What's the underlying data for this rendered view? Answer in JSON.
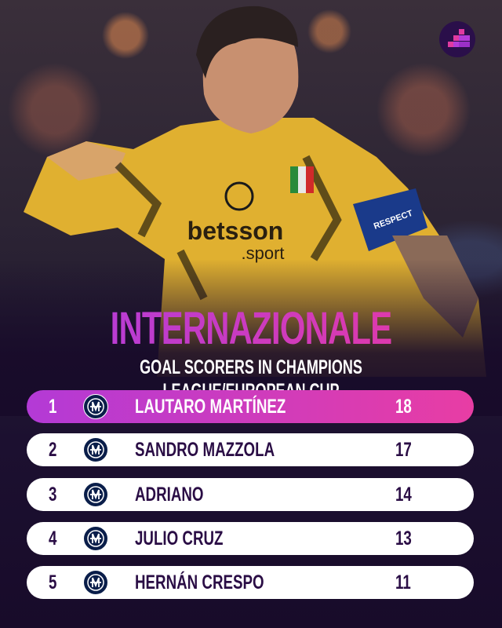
{
  "header": {
    "title": "INTERNAZIONALE",
    "subtitle": "GOAL SCORERS IN CHAMPIONS LEAGUE/EUROPEAN CUP"
  },
  "brand_icon": "stairs-logo-icon",
  "photo": {
    "shirt_text": "betsson sport",
    "armband_text": "RESPECT"
  },
  "colors": {
    "accent_start": "#b33ad6",
    "accent_end": "#e83da4",
    "background": "#180b2a",
    "row": "#ffffff"
  },
  "rows": [
    {
      "rank": "1",
      "club_icon": "inter-crest-icon",
      "name": "LAUTARO MARTÍNEZ",
      "goals": "18",
      "highlighted": true
    },
    {
      "rank": "2",
      "club_icon": "inter-crest-icon",
      "name": "SANDRO MAZZOLA",
      "goals": "17"
    },
    {
      "rank": "3",
      "club_icon": "inter-crest-icon",
      "name": "ADRIANO",
      "goals": "14"
    },
    {
      "rank": "4",
      "club_icon": "inter-crest-icon",
      "name": "JULIO CRUZ",
      "goals": "13"
    },
    {
      "rank": "5",
      "club_icon": "inter-crest-icon",
      "name": "HERNÁN CRESPO",
      "goals": "11"
    }
  ]
}
